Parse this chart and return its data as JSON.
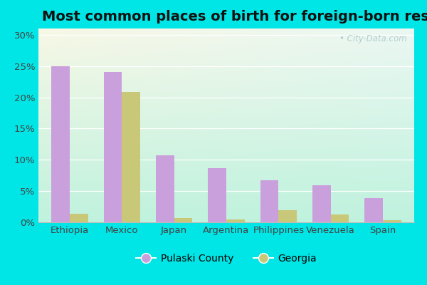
{
  "title": "Most common places of birth for foreign-born residents",
  "categories": [
    "Ethiopia",
    "Mexico",
    "Japan",
    "Argentina",
    "Philippines",
    "Venezuela",
    "Spain"
  ],
  "pulaski_values": [
    25.0,
    24.0,
    10.7,
    8.7,
    6.7,
    5.9,
    3.9
  ],
  "georgia_values": [
    1.4,
    20.8,
    0.7,
    0.4,
    1.9,
    1.3,
    0.3
  ],
  "pulaski_color": "#c9a0dc",
  "georgia_color": "#c8c878",
  "background_outer": "#00e5e5",
  "background_plot_tl": "#e8f5e0",
  "background_plot_br": "#c0ede8",
  "grid_color": "#e0ece0",
  "ylim": [
    0,
    31
  ],
  "yticks": [
    0,
    5,
    10,
    15,
    20,
    25,
    30
  ],
  "bar_width": 0.35,
  "legend_labels": [
    "Pulaski County",
    "Georgia"
  ],
  "watermark": "• City-Data.com",
  "title_fontsize": 14,
  "axis_fontsize": 9.5,
  "legend_fontsize": 10
}
